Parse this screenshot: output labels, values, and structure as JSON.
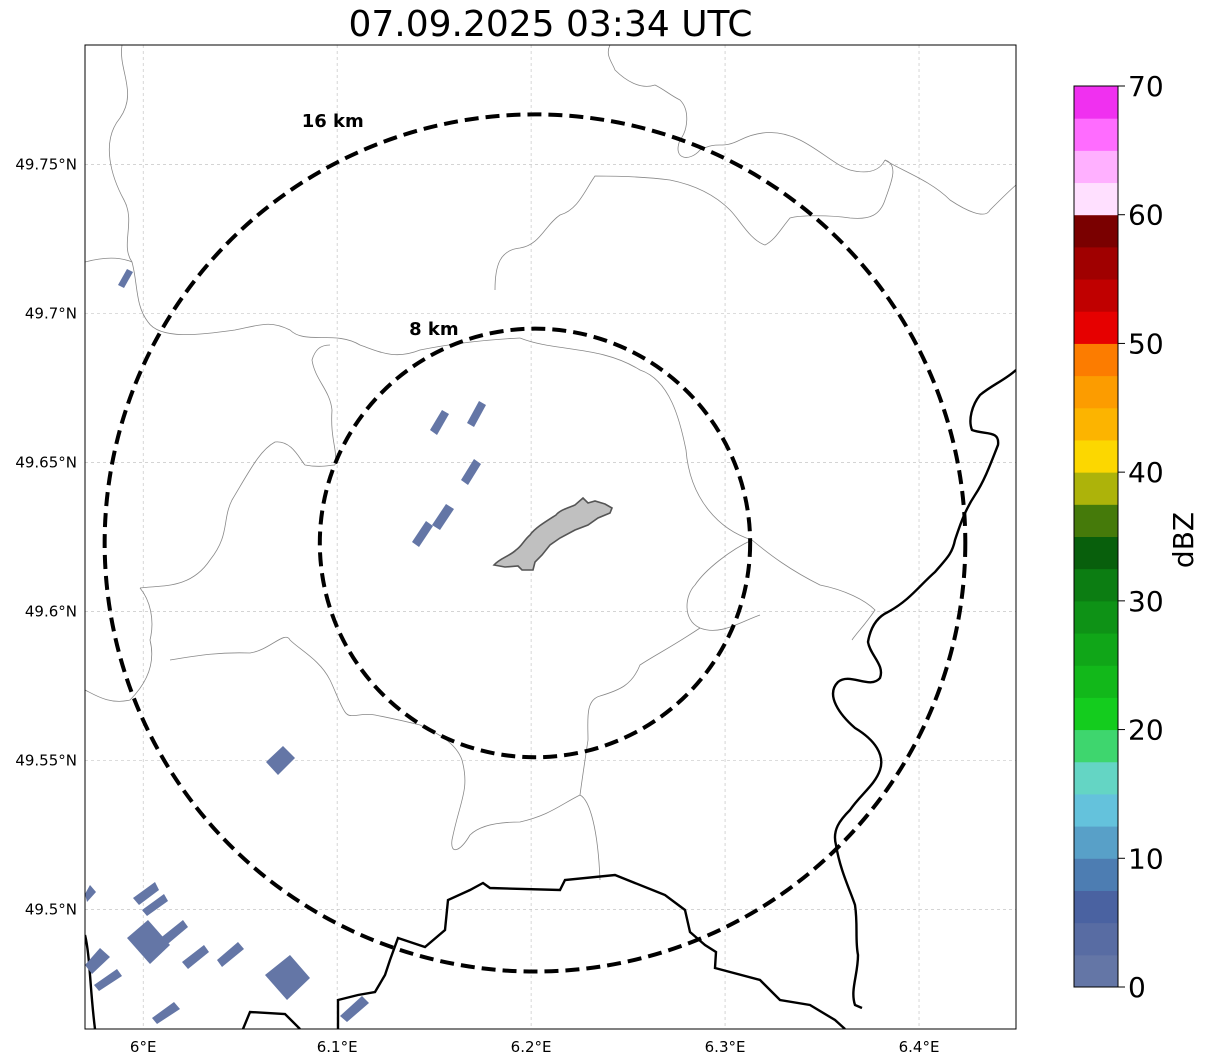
{
  "title": "07.09.2025 03:34 UTC",
  "map": {
    "lon_range": [
      5.97,
      6.45
    ],
    "lat_range": [
      49.46,
      49.79
    ],
    "x_ticks": [
      {
        "value": 6.0,
        "label": "6°E"
      },
      {
        "value": 6.1,
        "label": "6.1°E"
      },
      {
        "value": 6.2,
        "label": "6.2°E"
      },
      {
        "value": 6.3,
        "label": "6.3°E"
      },
      {
        "value": 6.4,
        "label": "6.4°E"
      }
    ],
    "y_ticks": [
      {
        "value": 49.5,
        "label": "49.5°N"
      },
      {
        "value": 49.55,
        "label": "49.55°N"
      },
      {
        "value": 49.6,
        "label": "49.6°N"
      },
      {
        "value": 49.65,
        "label": "49.65°N"
      },
      {
        "value": 49.7,
        "label": "49.7°N"
      },
      {
        "value": 49.75,
        "label": "49.75°N"
      }
    ],
    "gridlines": true,
    "center": {
      "lon": 6.202,
      "lat": 49.623
    },
    "range_rings": [
      {
        "radius_km": 8,
        "label": "8 km"
      },
      {
        "radius_km": 16,
        "label": "16 km"
      }
    ],
    "city_fill": "#c0c0c0"
  },
  "colorbar": {
    "label": "dBZ",
    "min": 0,
    "max": 70,
    "step": 2.5,
    "tick_labels": [
      "0",
      "10",
      "20",
      "30",
      "40",
      "50",
      "60",
      "70"
    ],
    "colors": [
      "#6476a6",
      "#586ca3",
      "#4a62a1",
      "#4d7db2",
      "#58a0c8",
      "#64c2dc",
      "#64d5c4",
      "#3ed66e",
      "#14cc1e",
      "#12b81a",
      "#10a618",
      "#0e9216",
      "#0c7d12",
      "#085f0c",
      "#457a0a",
      "#adb30a",
      "#fcd700",
      "#fcb400",
      "#fc9c00",
      "#fc7c00",
      "#e60000",
      "#c00000",
      "#a00000",
      "#7a0000",
      "#ffe0ff",
      "#ffb0ff",
      "#ff6cff",
      "#f030f0"
    ],
    "echo_color": "#6476a6"
  }
}
